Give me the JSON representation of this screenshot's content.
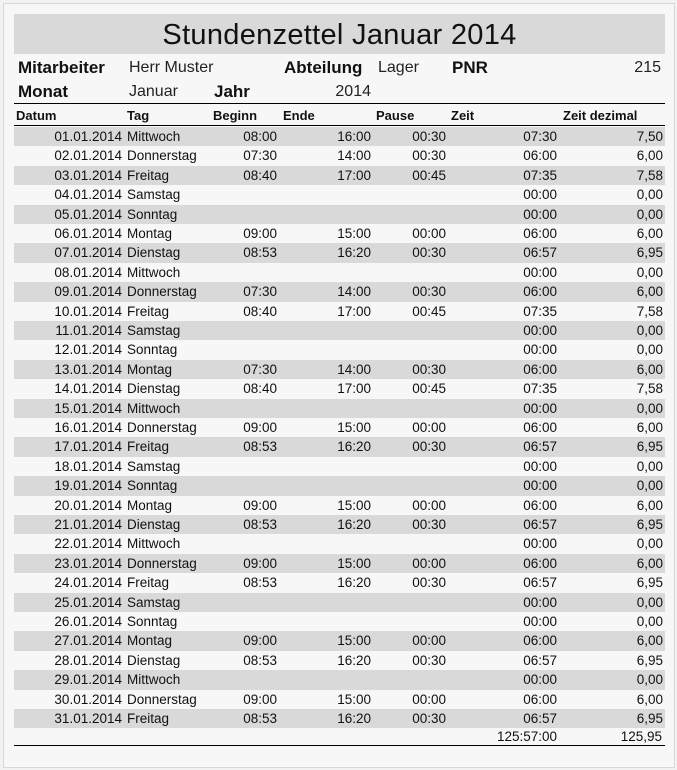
{
  "title": "Stundenzettel Januar 2014",
  "info": {
    "mitarbeiter_label": "Mitarbeiter",
    "mitarbeiter": "Herr Muster",
    "abteilung_label": "Abteilung",
    "abteilung": "Lager",
    "pnr_label": "PNR",
    "pnr": "215",
    "monat_label": "Monat",
    "monat": "Januar",
    "jahr_label": "Jahr",
    "jahr": "2014"
  },
  "columns": [
    "Datum",
    "Tag",
    "Beginn",
    "Ende",
    "Pause",
    "Zeit",
    "Zeit dezimal"
  ],
  "rows": [
    [
      "01.01.2014",
      "Mittwoch",
      "08:00",
      "16:00",
      "00:30",
      "07:30",
      "7,50"
    ],
    [
      "02.01.2014",
      "Donnerstag",
      "07:30",
      "14:00",
      "00:30",
      "06:00",
      "6,00"
    ],
    [
      "03.01.2014",
      "Freitag",
      "08:40",
      "17:00",
      "00:45",
      "07:35",
      "7,58"
    ],
    [
      "04.01.2014",
      "Samstag",
      "",
      "",
      "",
      "00:00",
      "0,00"
    ],
    [
      "05.01.2014",
      "Sonntag",
      "",
      "",
      "",
      "00:00",
      "0,00"
    ],
    [
      "06.01.2014",
      "Montag",
      "09:00",
      "15:00",
      "00:00",
      "06:00",
      "6,00"
    ],
    [
      "07.01.2014",
      "Dienstag",
      "08:53",
      "16:20",
      "00:30",
      "06:57",
      "6,95"
    ],
    [
      "08.01.2014",
      "Mittwoch",
      "",
      "",
      "",
      "00:00",
      "0,00"
    ],
    [
      "09.01.2014",
      "Donnerstag",
      "07:30",
      "14:00",
      "00:30",
      "06:00",
      "6,00"
    ],
    [
      "10.01.2014",
      "Freitag",
      "08:40",
      "17:00",
      "00:45",
      "07:35",
      "7,58"
    ],
    [
      "11.01.2014",
      "Samstag",
      "",
      "",
      "",
      "00:00",
      "0,00"
    ],
    [
      "12.01.2014",
      "Sonntag",
      "",
      "",
      "",
      "00:00",
      "0,00"
    ],
    [
      "13.01.2014",
      "Montag",
      "07:30",
      "14:00",
      "00:30",
      "06:00",
      "6,00"
    ],
    [
      "14.01.2014",
      "Dienstag",
      "08:40",
      "17:00",
      "00:45",
      "07:35",
      "7,58"
    ],
    [
      "15.01.2014",
      "Mittwoch",
      "",
      "",
      "",
      "00:00",
      "0,00"
    ],
    [
      "16.01.2014",
      "Donnerstag",
      "09:00",
      "15:00",
      "00:00",
      "06:00",
      "6,00"
    ],
    [
      "17.01.2014",
      "Freitag",
      "08:53",
      "16:20",
      "00:30",
      "06:57",
      "6,95"
    ],
    [
      "18.01.2014",
      "Samstag",
      "",
      "",
      "",
      "00:00",
      "0,00"
    ],
    [
      "19.01.2014",
      "Sonntag",
      "",
      "",
      "",
      "00:00",
      "0,00"
    ],
    [
      "20.01.2014",
      "Montag",
      "09:00",
      "15:00",
      "00:00",
      "06:00",
      "6,00"
    ],
    [
      "21.01.2014",
      "Dienstag",
      "08:53",
      "16:20",
      "00:30",
      "06:57",
      "6,95"
    ],
    [
      "22.01.2014",
      "Mittwoch",
      "",
      "",
      "",
      "00:00",
      "0,00"
    ],
    [
      "23.01.2014",
      "Donnerstag",
      "09:00",
      "15:00",
      "00:00",
      "06:00",
      "6,00"
    ],
    [
      "24.01.2014",
      "Freitag",
      "08:53",
      "16:20",
      "00:30",
      "06:57",
      "6,95"
    ],
    [
      "25.01.2014",
      "Samstag",
      "",
      "",
      "",
      "00:00",
      "0,00"
    ],
    [
      "26.01.2014",
      "Sonntag",
      "",
      "",
      "",
      "00:00",
      "0,00"
    ],
    [
      "27.01.2014",
      "Montag",
      "09:00",
      "15:00",
      "00:00",
      "06:00",
      "6,00"
    ],
    [
      "28.01.2014",
      "Dienstag",
      "08:53",
      "16:20",
      "00:30",
      "06:57",
      "6,95"
    ],
    [
      "29.01.2014",
      "Mittwoch",
      "",
      "",
      "",
      "00:00",
      "0,00"
    ],
    [
      "30.01.2014",
      "Donnerstag",
      "09:00",
      "15:00",
      "00:00",
      "06:00",
      "6,00"
    ],
    [
      "31.01.2014",
      "Freitag",
      "08:53",
      "16:20",
      "00:30",
      "06:57",
      "6,95"
    ]
  ],
  "totals": {
    "zeit": "125:57:00",
    "dezimal": "125,95"
  },
  "colors": {
    "shade": "#d9d9d9"
  }
}
